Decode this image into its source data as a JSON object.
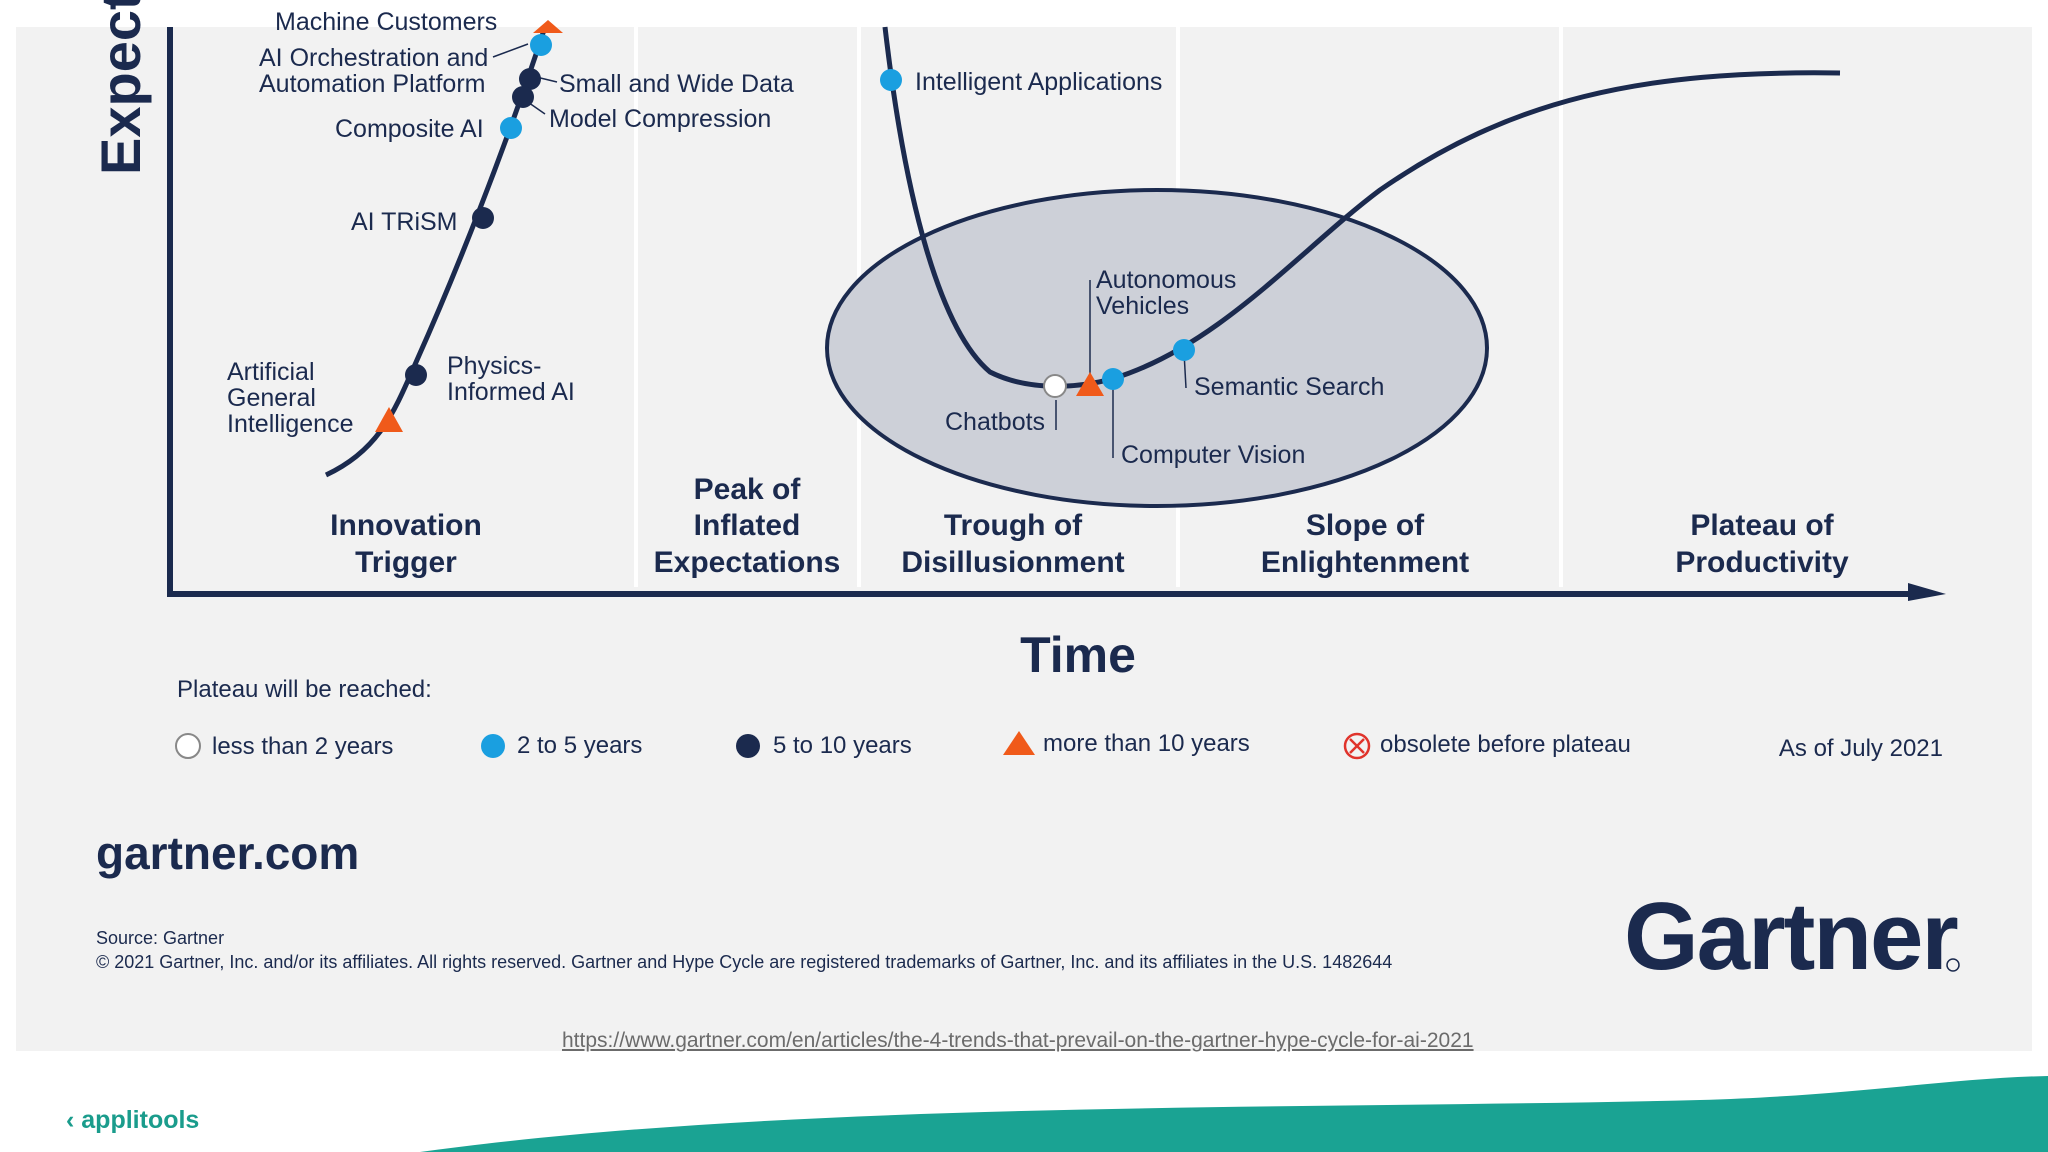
{
  "axes": {
    "y_label": "Expectations",
    "x_label": "Time"
  },
  "innovations": [
    {
      "label": "Machine Customers",
      "marker": "triangle"
    },
    {
      "label": "AI Orchestration and Automation Platform",
      "marker": "light-blue"
    },
    {
      "label": "Small and Wide Data",
      "marker": "dark-navy"
    },
    {
      "label": "Model Compression",
      "marker": "dark-navy"
    },
    {
      "label": "Composite AI",
      "marker": "light-blue"
    },
    {
      "label": "AI TRiSM",
      "marker": "dark-navy"
    },
    {
      "label": "Physics-Informed AI",
      "marker": "dark-navy"
    },
    {
      "label": "Artificial General Intelligence",
      "marker": "triangle"
    },
    {
      "label": "Intelligent Applications",
      "marker": "light-blue"
    },
    {
      "label": "Autonomous Vehicles",
      "marker": "triangle"
    },
    {
      "label": "Chatbots",
      "marker": "hollow"
    },
    {
      "label": "Computer Vision",
      "marker": "light-blue"
    },
    {
      "label": "Semantic Search",
      "marker": "light-blue"
    }
  ],
  "phases": [
    {
      "line1": "Innovation",
      "line2": "Trigger"
    },
    {
      "line1": "Peak of",
      "line2": "Inflated",
      "line3": "Expectations"
    },
    {
      "line1": "Trough of",
      "line2": "Disillusionment"
    },
    {
      "line1": "Slope of",
      "line2": "Enlightenment"
    },
    {
      "line1": "Plateau of",
      "line2": "Productivity"
    }
  ],
  "legend": {
    "title": "Plateau will be reached:",
    "items": [
      {
        "label": "less than 2 years",
        "marker": "hollow"
      },
      {
        "label": "2 to 5 years",
        "marker": "light-blue"
      },
      {
        "label": "5 to 10 years",
        "marker": "dark-navy"
      },
      {
        "label": "more than 10 years",
        "marker": "triangle"
      },
      {
        "label": "obsolete before plateau",
        "marker": "x-circle"
      }
    ],
    "as_of": "As of July 2021"
  },
  "footer": {
    "site": "gartner.com",
    "source": "Source: Gartner",
    "copyright": "© 2021 Gartner, Inc. and/or its affiliates. All rights reserved. Gartner and Hype Cycle are registered trademarks of Gartner, Inc. and its affiliates in the U.S. 1482644",
    "brand": "Gartner",
    "url": "https://www.gartner.com/en/articles/the-4-trends-that-prevail-on-the-gartner-hype-cycle-for-ai-2021",
    "slide_logo": "applitools"
  },
  "colors": {
    "navy": "#1b2a4e",
    "light_blue": "#1a9fe0",
    "orange": "#f05a1a",
    "red": "#e0332b",
    "teal": "#1aa393",
    "ellipse_fill": "#cdd0d8"
  }
}
